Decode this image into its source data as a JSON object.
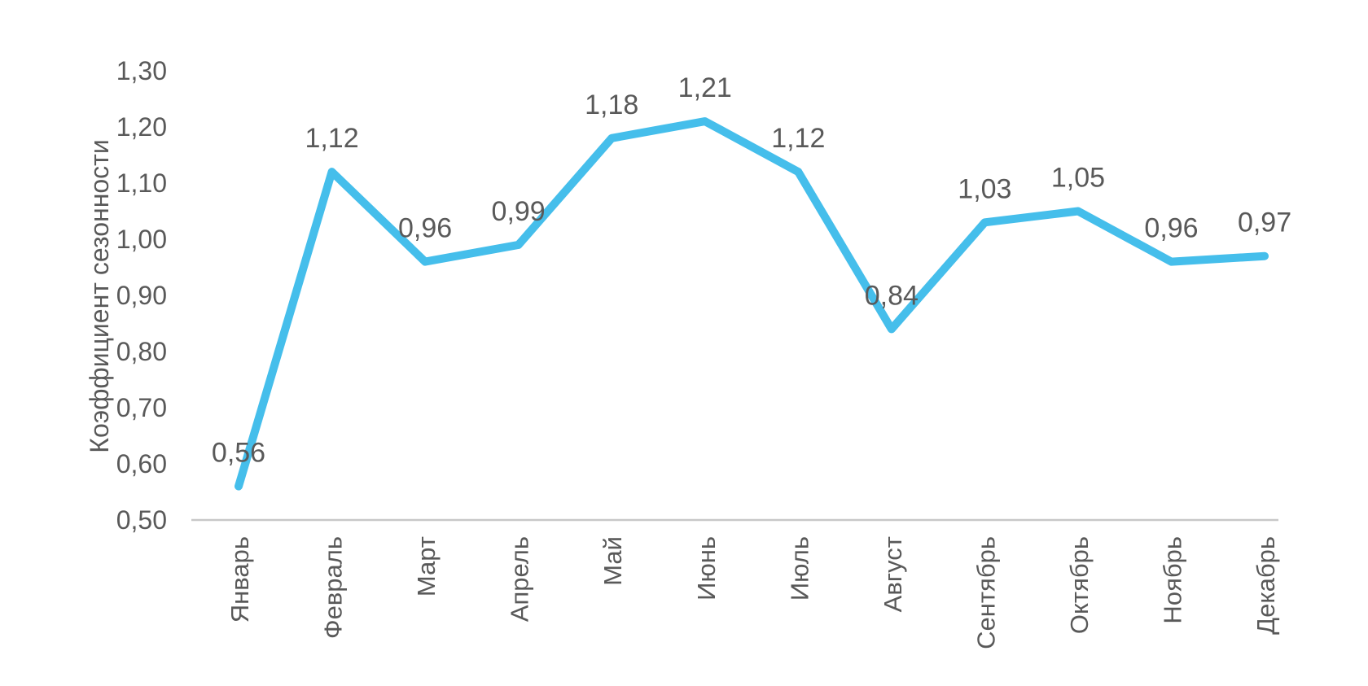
{
  "chart_data": {
    "type": "line",
    "title": "",
    "categories": [
      "Январь",
      "Февраль",
      "Март",
      "Апрель",
      "Май",
      "Июнь",
      "Июль",
      "Август",
      "Сентябрь",
      "Октябрь",
      "Ноябрь",
      "Декабрь"
    ],
    "values": [
      0.56,
      1.12,
      0.96,
      0.99,
      1.18,
      1.21,
      1.12,
      0.84,
      1.03,
      1.05,
      0.96,
      0.97
    ],
    "data_labels": [
      "0,56",
      "1,12",
      "0,96",
      "0,99",
      "1,18",
      "1,21",
      "1,12",
      "0,84",
      "1,03",
      "1,05",
      "0,96",
      "0,97"
    ],
    "xlabel": "",
    "ylabel": "Коэффициент сезонности",
    "ylim": [
      0.5,
      1.3
    ],
    "y_ticks": [
      {
        "value": 1.3,
        "label": "1,30"
      },
      {
        "value": 1.2,
        "label": "1,20"
      },
      {
        "value": 1.1,
        "label": "1,10"
      },
      {
        "value": 1.0,
        "label": "1,00"
      },
      {
        "value": 0.9,
        "label": "0,90"
      },
      {
        "value": 0.8,
        "label": "0,80"
      },
      {
        "value": 0.7,
        "label": "0,70"
      },
      {
        "value": 0.6,
        "label": "0,60"
      },
      {
        "value": 0.5,
        "label": "0,50"
      }
    ],
    "grid": "off",
    "legend": "none",
    "colors": {
      "line": "#45BEEB",
      "text": "#595959",
      "axis_line": "#C8C8C8"
    }
  }
}
